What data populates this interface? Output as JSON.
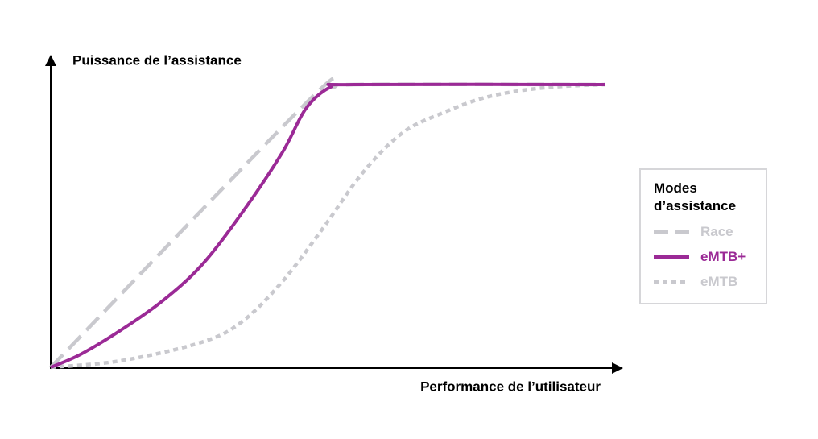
{
  "chart_data": {
    "type": "line",
    "y_label": "Puissance de l’assistance",
    "x_label": "Performance de l’utilisateur",
    "legend_title": "Modes d’assistance",
    "legend_position": "right",
    "xlim": [
      0,
      100
    ],
    "ylim": [
      0,
      100
    ],
    "series": [
      {
        "name": "Race",
        "color": "#c9c9ce",
        "line_style": "dashed",
        "x": [
          0,
          46,
          51,
          55,
          100
        ],
        "values": [
          0,
          93.4,
          99,
          100,
          100
        ]
      },
      {
        "name": "eMTB+",
        "color": "#9b2a96",
        "line_style": "solid",
        "x": [
          0,
          5.4,
          12.6,
          19.9,
          27.1,
          34.4,
          41.7,
          46,
          50.4,
          54.7,
          100
        ],
        "values": [
          0,
          4.6,
          13.1,
          23.1,
          35.9,
          54.4,
          75.8,
          91.5,
          99.1,
          100,
          100
        ]
      },
      {
        "name": "eMTB",
        "color": "#c9c9ce",
        "line_style": "dotted",
        "x": [
          0,
          12.6,
          27.1,
          34.4,
          41.7,
          48.9,
          56.2,
          63.4,
          70.7,
          77.9,
          85.2,
          92.5,
          100
        ],
        "values": [
          0,
          2.3,
          8.8,
          16,
          30.2,
          48.7,
          68.7,
          82.9,
          90,
          95.2,
          98,
          99.4,
          100
        ]
      }
    ]
  }
}
